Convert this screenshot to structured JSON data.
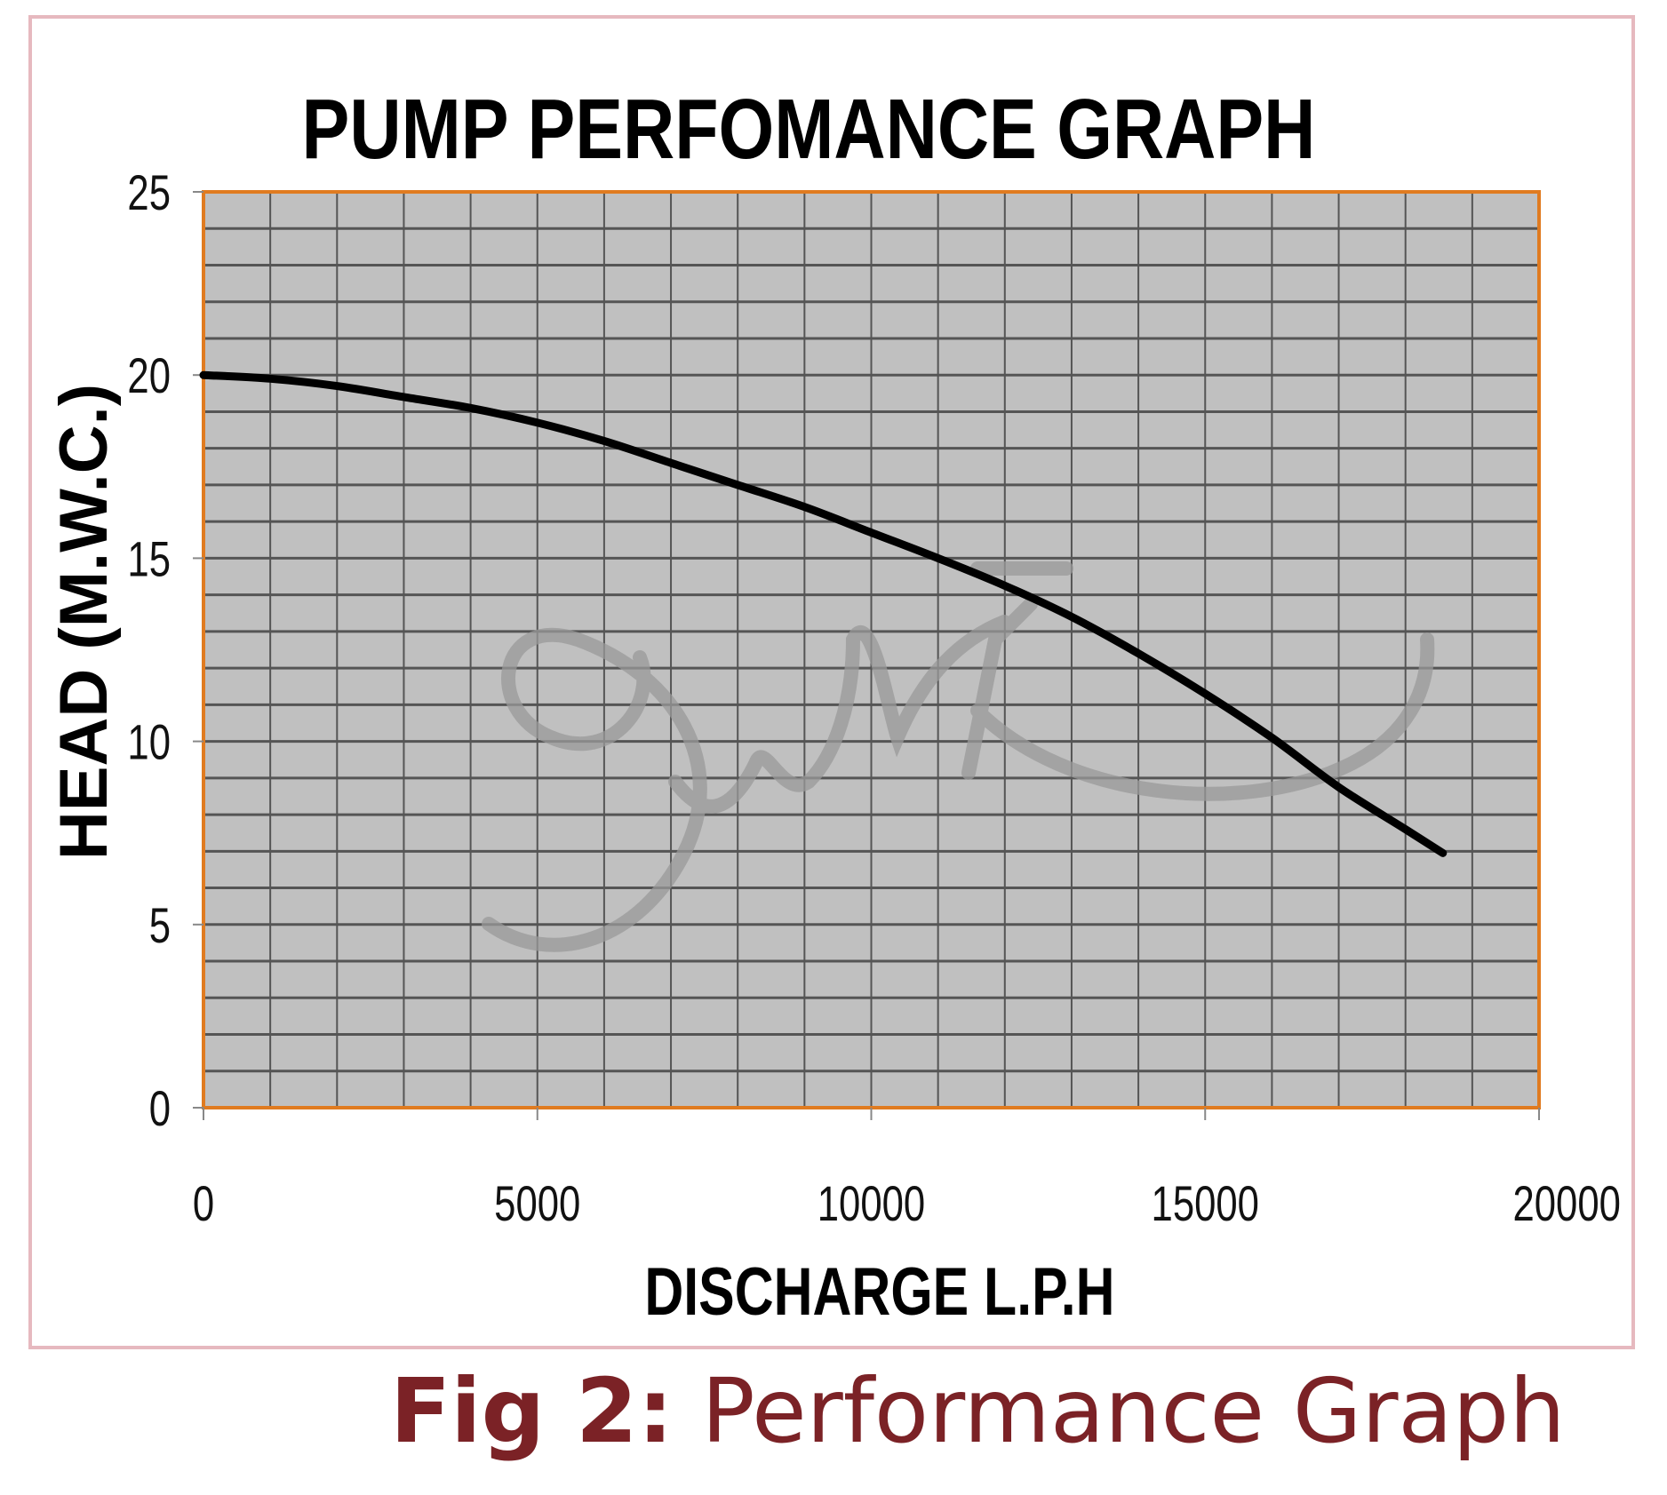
{
  "chart_data": {
    "type": "line",
    "title": "PUMP PERFOMANCE GRAPH",
    "xlabel": "DISCHARGE L.P.H",
    "ylabel": "HEAD (M.W.C.)",
    "xlim": [
      0,
      20000
    ],
    "ylim": [
      0,
      25
    ],
    "xticks": [
      "0",
      "5000",
      "10000",
      "15000",
      "20000"
    ],
    "yticks": [
      "0",
      "5",
      "10",
      "15",
      "20",
      "25"
    ],
    "grid": true,
    "grid_x_step": 1000,
    "grid_y_step": 1,
    "series": [
      {
        "name": "Head",
        "x": [
          0,
          1000,
          2000,
          3000,
          4000,
          5000,
          6000,
          7000,
          8000,
          9000,
          10000,
          11000,
          12000,
          13000,
          14000,
          15000,
          16000,
          17000,
          18000,
          18560
        ],
        "y": [
          20.0,
          19.9,
          19.7,
          19.4,
          19.1,
          18.7,
          18.2,
          17.6,
          17.0,
          16.4,
          15.7,
          15.0,
          14.25,
          13.4,
          12.4,
          11.3,
          10.1,
          8.75,
          7.6,
          6.95
        ]
      }
    ]
  },
  "colors": {
    "plot_bg": "#c0c0c0",
    "axis": "#e07b20",
    "grid": "#555555",
    "line": "#000000",
    "caption": "#7b2226",
    "border": "#e6b9bf"
  },
  "caption": {
    "prefix": "Fig 2:",
    "text": " Performance Graph"
  }
}
